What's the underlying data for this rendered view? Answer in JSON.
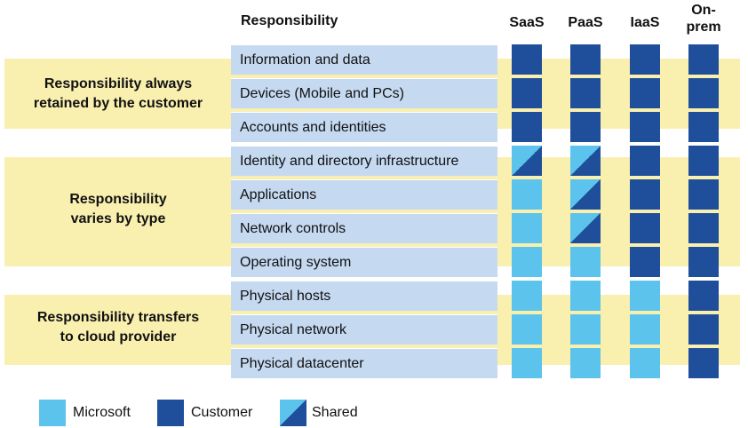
{
  "header": {
    "responsibility": "Responsibility"
  },
  "columns": [
    "SaaS",
    "PaaS",
    "IaaS",
    "On-\nprem"
  ],
  "groups": [
    {
      "label": "Responsibility always\nretained by the customer"
    },
    {
      "label": "Responsibility\nvaries by type"
    },
    {
      "label": "Responsibility transfers\nto cloud provider"
    }
  ],
  "rows": [
    {
      "label": "Information and data",
      "cells": [
        "customer",
        "customer",
        "customer",
        "customer"
      ]
    },
    {
      "label": "Devices (Mobile and PCs)",
      "cells": [
        "customer",
        "customer",
        "customer",
        "customer"
      ]
    },
    {
      "label": "Accounts and identities",
      "cells": [
        "customer",
        "customer",
        "customer",
        "customer"
      ]
    },
    {
      "label": "Identity and directory infrastructure",
      "cells": [
        "shared",
        "shared",
        "customer",
        "customer"
      ]
    },
    {
      "label": "Applications",
      "cells": [
        "microsoft",
        "shared",
        "customer",
        "customer"
      ]
    },
    {
      "label": "Network controls",
      "cells": [
        "microsoft",
        "shared",
        "customer",
        "customer"
      ]
    },
    {
      "label": "Operating system",
      "cells": [
        "microsoft",
        "microsoft",
        "customer",
        "customer"
      ]
    },
    {
      "label": "Physical hosts",
      "cells": [
        "microsoft",
        "microsoft",
        "microsoft",
        "customer"
      ]
    },
    {
      "label": "Physical network",
      "cells": [
        "microsoft",
        "microsoft",
        "microsoft",
        "customer"
      ]
    },
    {
      "label": "Physical datacenter",
      "cells": [
        "microsoft",
        "microsoft",
        "microsoft",
        "customer"
      ]
    }
  ],
  "legend": [
    {
      "key": "microsoft",
      "label": "Microsoft"
    },
    {
      "key": "customer",
      "label": "Customer"
    },
    {
      "key": "shared",
      "label": "Shared"
    }
  ],
  "colors": {
    "microsoft": "#5bc3ec",
    "customer": "#1f4e9a",
    "band": "#f9f0b0",
    "row_label": "#c5d9f1"
  }
}
